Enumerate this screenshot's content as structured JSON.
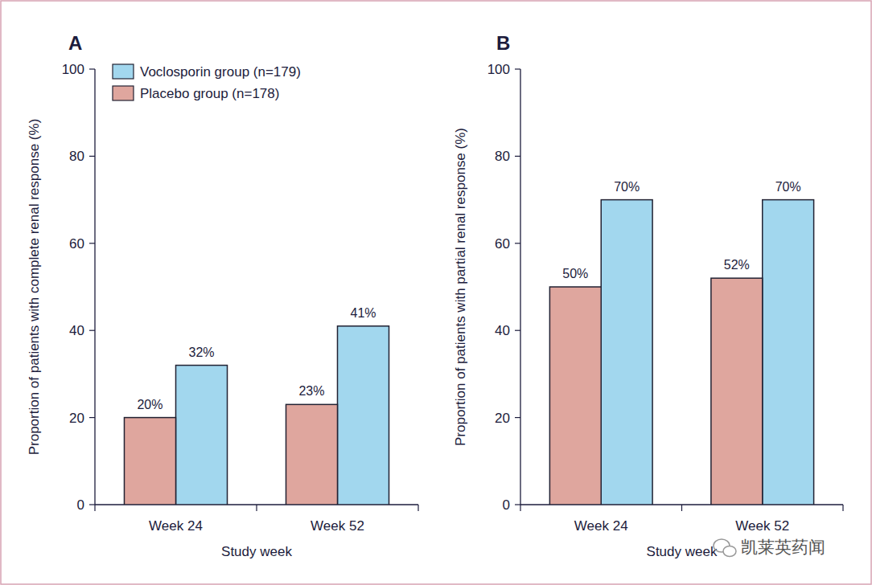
{
  "chart_data": [
    {
      "type": "bar",
      "title": "A",
      "x_label": "Study week",
      "y_label": "Proportion of patients with complete renal response (%)",
      "categories": [
        "Week 24",
        "Week 52"
      ],
      "series": [
        {
          "name": "Voclosporin group (n=179)",
          "color": "#a2d7ee",
          "values": [
            32,
            41
          ],
          "value_labels": [
            "32%",
            "41%"
          ]
        },
        {
          "name": "Placebo group (n=178)",
          "color": "#dfa69e",
          "values": [
            20,
            23
          ],
          "value_labels": [
            "20%",
            "23%"
          ]
        }
      ],
      "ylim": [
        0,
        100
      ],
      "yticks": [
        0,
        20,
        40,
        60,
        80,
        100
      ],
      "legend": "upper-left",
      "data_labels": true,
      "grid": false
    },
    {
      "type": "bar",
      "title": "B",
      "x_label": "Study week",
      "y_label": "Proportion of patients with partial renal response (%)",
      "categories": [
        "Week 24",
        "Week 52"
      ],
      "series": [
        {
          "color": "#a2d7ee",
          "values": [
            70,
            70
          ],
          "value_labels": [
            "70%",
            "70%"
          ]
        },
        {
          "color": "#dfa69e",
          "values": [
            50,
            52
          ],
          "value_labels": [
            "50%",
            "52%"
          ]
        }
      ],
      "ylim": [
        0,
        100
      ],
      "yticks": [
        0,
        20,
        40,
        60,
        80,
        100
      ],
      "data_labels": true,
      "grid": false
    }
  ],
  "watermark": "凯莱英药闻"
}
